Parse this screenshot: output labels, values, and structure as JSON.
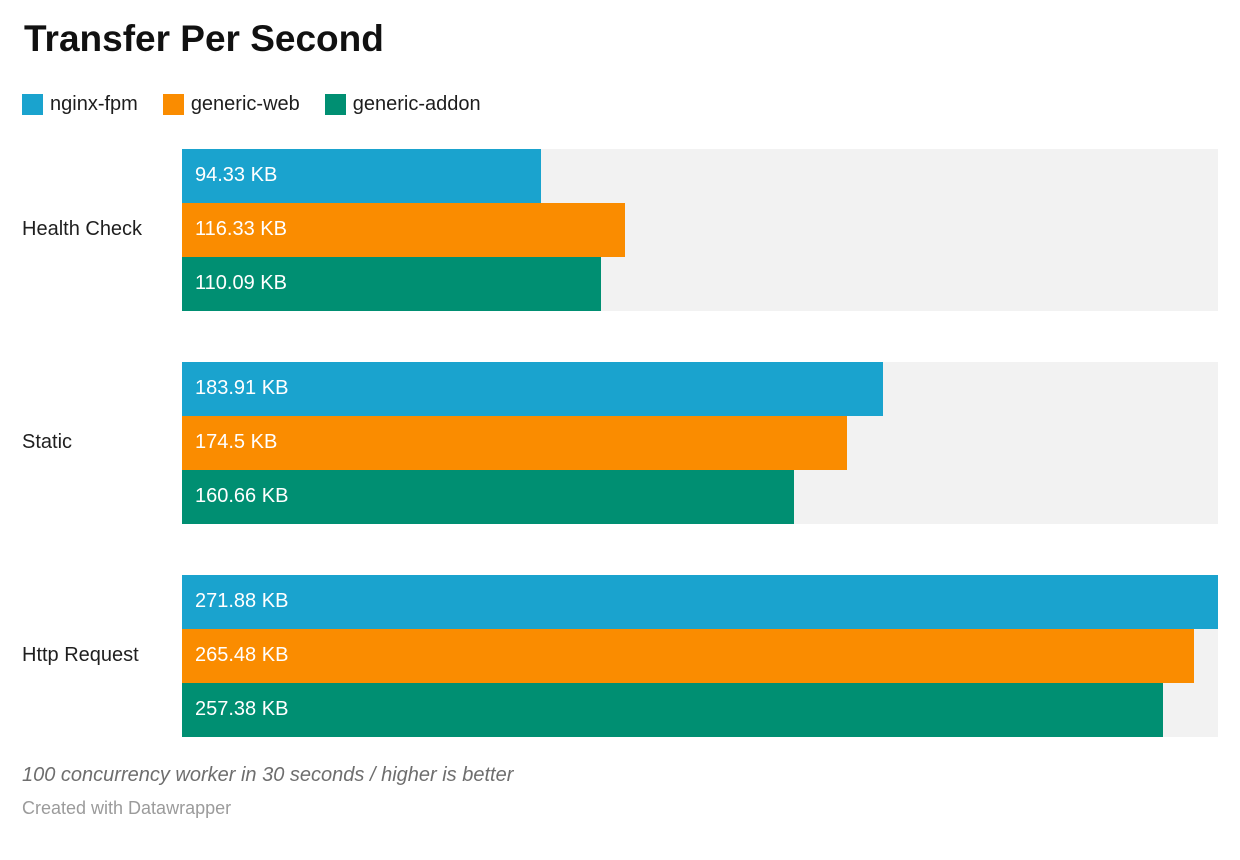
{
  "header": {
    "title": "Transfer Per Second"
  },
  "legend": [
    {
      "label": "nginx-fpm",
      "color": "#1aa3ce"
    },
    {
      "label": "generic-web",
      "color": "#fa8c00"
    },
    {
      "label": "generic-addon",
      "color": "#008f72"
    }
  ],
  "chart_data": {
    "type": "bar",
    "orientation": "horizontal",
    "title": "Transfer Per Second",
    "unit": "KB",
    "categories": [
      "Health Check",
      "Static",
      "Http Request"
    ],
    "series": [
      {
        "name": "nginx-fpm",
        "color": "#1aa3ce",
        "values": [
          94.33,
          183.91,
          271.88
        ],
        "value_labels": [
          "94.33 KB",
          "183.91 KB",
          "271.88 KB"
        ]
      },
      {
        "name": "generic-web",
        "color": "#fa8c00",
        "values": [
          116.33,
          174.5,
          265.48
        ],
        "value_labels": [
          "116.33 KB",
          "174.5 KB",
          "265.48 KB"
        ]
      },
      {
        "name": "generic-addon",
        "color": "#008f72",
        "values": [
          110.09,
          160.66,
          257.38
        ],
        "value_labels": [
          "110.09 KB",
          "160.66 KB",
          "257.38 KB"
        ]
      }
    ],
    "xlim": [
      0,
      271.88
    ],
    "track_color": "#f2f2f2",
    "grid": false,
    "legend_position": "top",
    "value_labels_inside_bars": true,
    "note": "100 concurrency worker in 30 seconds / higher is better",
    "attribution": "Created with Datawrapper"
  },
  "footer": {
    "note": "100 concurrency worker in 30 seconds / higher is better",
    "attribution": "Created with Datawrapper"
  }
}
